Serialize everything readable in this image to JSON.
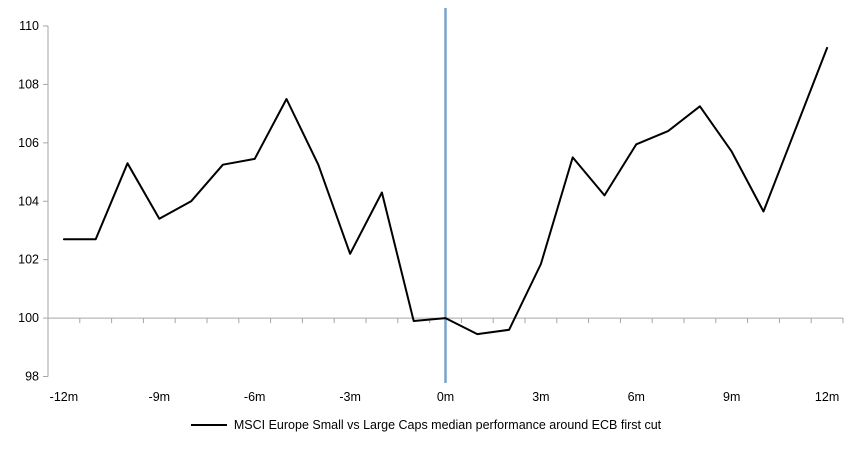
{
  "chart_data": {
    "type": "line",
    "title": "",
    "legend_label": "MSCI Europe Small vs Large Caps median performance around ECB first cut",
    "x": [
      -12,
      -11,
      -10,
      -9,
      -8,
      -7,
      -6,
      -5,
      -4,
      -3,
      -2,
      -1,
      0,
      1,
      2,
      3,
      4,
      5,
      6,
      7,
      8,
      9,
      10,
      11,
      12
    ],
    "series": [
      {
        "name": "MSCI Europe Small vs Large Caps median performance around ECB first cut",
        "values": [
          102.7,
          102.7,
          105.3,
          103.4,
          104.0,
          105.25,
          105.45,
          107.5,
          105.25,
          102.2,
          104.3,
          99.9,
          100.0,
          99.45,
          99.6,
          101.85,
          105.5,
          104.2,
          105.95,
          106.4,
          107.25,
          105.7,
          103.65,
          106.45,
          109.25
        ]
      }
    ],
    "x_axis": {
      "tick_values": [
        -12,
        -9,
        -6,
        -3,
        0,
        3,
        6,
        9,
        12
      ],
      "tick_labels": [
        "-12m",
        "-9m",
        "-6m",
        "-3m",
        "0m",
        "3m",
        "6m",
        "9m",
        "12m"
      ]
    },
    "y_axis": {
      "tick_values": [
        98,
        100,
        102,
        104,
        106,
        108,
        110
      ],
      "tick_labels": [
        "98",
        "100",
        "102",
        "104",
        "106",
        "108",
        "110"
      ]
    },
    "ylim": [
      98,
      110
    ],
    "baseline": 100,
    "event_line_x": 0,
    "grid": "baseline-only",
    "legend_position": "bottom-center",
    "colors": {
      "series_line": "#000000",
      "event_line": "#78A4CB",
      "axis": "#A6A6A6",
      "background": "#FFFFFF"
    }
  }
}
